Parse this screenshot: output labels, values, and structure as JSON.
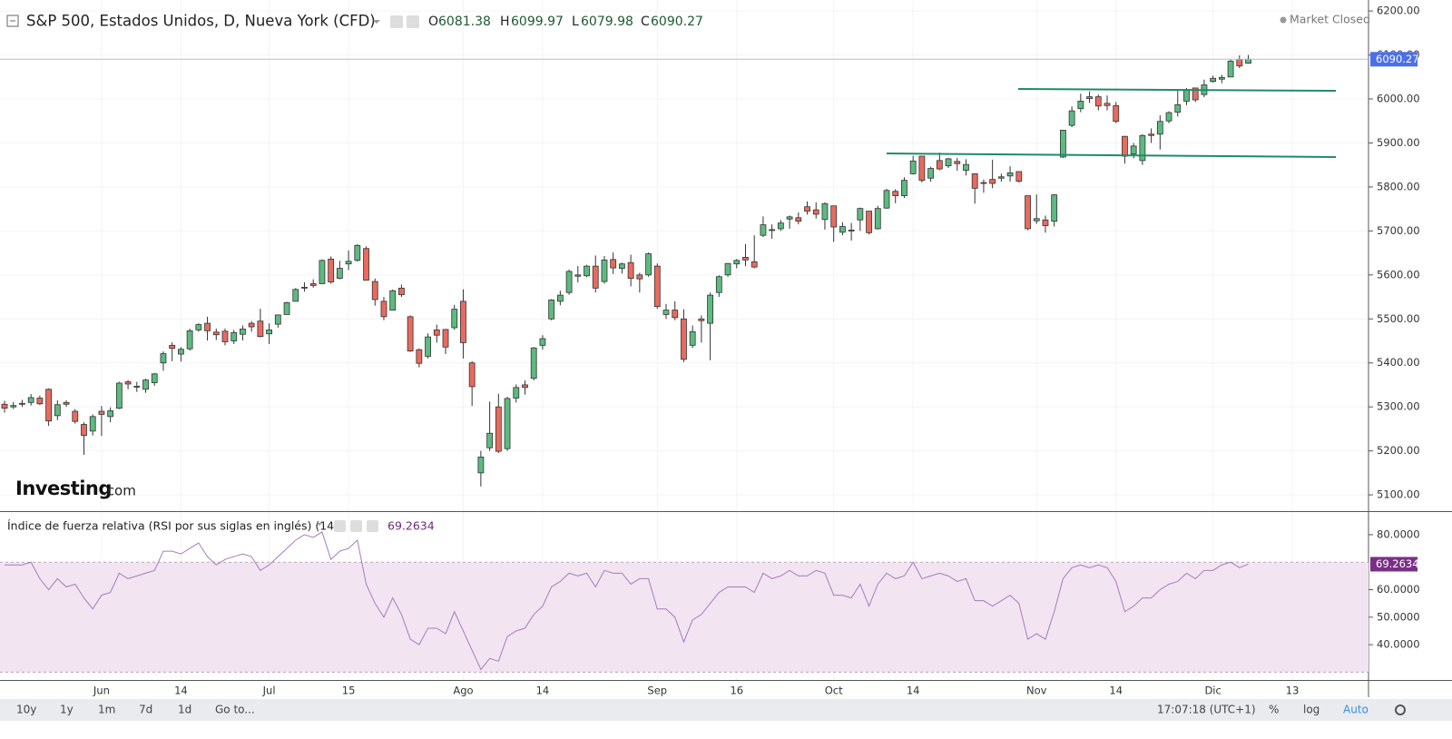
{
  "chart_data": [
    {
      "type": "candlestick",
      "title": "S&P 500, Estados Unidos, D, Nueva York (CFD)",
      "categories": [
        null,
        null,
        null,
        null,
        null,
        null,
        null,
        null,
        null,
        null,
        null,
        "Jun",
        null,
        null,
        null,
        null,
        null,
        null,
        null,
        null,
        "14",
        null,
        null,
        null,
        null,
        null,
        null,
        null,
        null,
        null,
        "Jul",
        null,
        null,
        null,
        null,
        null,
        null,
        null,
        null,
        "15",
        null,
        null,
        null,
        null,
        null,
        null,
        null,
        null,
        null,
        null,
        null,
        null,
        "Ago",
        null,
        null,
        null,
        null,
        null,
        null,
        null,
        null,
        "14",
        null,
        null,
        null,
        null,
        null,
        null,
        null,
        null,
        null,
        null,
        null,
        null,
        "Sep",
        null,
        null,
        null,
        null,
        null,
        null,
        null,
        null,
        "16",
        null,
        null,
        null,
        null,
        null,
        null,
        null,
        null,
        null,
        null,
        "Oct",
        null,
        null,
        null,
        null,
        null,
        null,
        null,
        null,
        "14",
        null,
        null,
        null,
        null,
        null,
        null,
        null,
        null,
        null,
        null,
        null,
        null,
        null,
        "Nov",
        null,
        null,
        null,
        null,
        null,
        null,
        null,
        null,
        "14",
        null,
        null,
        null,
        null,
        null,
        null,
        null,
        null,
        null,
        null,
        "Dic",
        null,
        null,
        null,
        null,
        null,
        null,
        null,
        null,
        "13"
      ],
      "open": [
        5306,
        5300,
        5306,
        5310,
        5320,
        5340,
        5280,
        5310,
        5290,
        5260,
        5245,
        5290,
        5278,
        5297,
        5357,
        5345,
        5340,
        5355,
        5400,
        5440,
        5420,
        5432,
        5475,
        5490,
        5470,
        5472,
        5450,
        5465,
        5490,
        5495,
        5466,
        5488,
        5510,
        5540,
        5570,
        5580,
        5580,
        5636,
        5592,
        5625,
        5633,
        5660,
        5585,
        5540,
        5520,
        5570,
        5505,
        5430,
        5415,
        5475,
        5476,
        5480,
        5540,
        5400,
        5150,
        5207,
        5300,
        5205,
        5320,
        5350,
        5365,
        5440,
        5500,
        5540,
        5560,
        5600,
        5598,
        5620,
        5585,
        5635,
        5615,
        5628,
        5600,
        5600,
        5620,
        5510,
        5520,
        5500,
        5440,
        5500,
        5490,
        5560,
        5600,
        5625,
        5640,
        5630,
        5690,
        5702,
        5705,
        5727,
        5730,
        5755,
        5748,
        5726,
        5757,
        5697,
        5702,
        5725,
        5745,
        5705,
        5752,
        5790,
        5780,
        5830,
        5870,
        5820,
        5860,
        5848,
        5858,
        5838,
        5830,
        5810,
        5817,
        5820,
        5825,
        5835,
        5780,
        5723,
        5725,
        5722,
        5868,
        5940,
        5978,
        6005,
        6005,
        5990,
        5985,
        5915,
        5875,
        5860,
        5920,
        5920,
        5950,
        5970,
        5995,
        6025,
        6010,
        6040,
        6045,
        6050,
        6090,
        6081.38,
        null,
        null,
        null,
        null,
        null
      ],
      "high": [
        5314,
        5311,
        5316,
        5329,
        5326,
        5342,
        5315,
        5315,
        5295,
        5265,
        5283,
        5302,
        5299,
        5357,
        5361,
        5357,
        5364,
        5377,
        5426,
        5447,
        5436,
        5478,
        5490,
        5505,
        5478,
        5478,
        5475,
        5485,
        5495,
        5523,
        5490,
        5510,
        5539,
        5570,
        5583,
        5590,
        5635,
        5642,
        5632,
        5656,
        5670,
        5665,
        5592,
        5550,
        5567,
        5578,
        5508,
        5433,
        5467,
        5487,
        5477,
        5532,
        5567,
        5404,
        5200,
        5312,
        5330,
        5323,
        5351,
        5360,
        5436,
        5463,
        5545,
        5564,
        5612,
        5620,
        5623,
        5644,
        5643,
        5651,
        5628,
        5646,
        5605,
        5651,
        5626,
        5534,
        5540,
        5522,
        5485,
        5508,
        5560,
        5599,
        5627,
        5636,
        5670,
        5690,
        5733,
        5715,
        5725,
        5735,
        5742,
        5767,
        5765,
        5765,
        5757,
        5720,
        5718,
        5753,
        5745,
        5757,
        5796,
        5795,
        5822,
        5871,
        5870,
        5846,
        5878,
        5866,
        5866,
        5863,
        5830,
        5817,
        5862,
        5830,
        5847,
        5835,
        5780,
        5783,
        5735,
        5784,
        5930,
        5983,
        6012,
        6017,
        6010,
        6008,
        5993,
        5916,
        5900,
        5920,
        5933,
        5963,
        5972,
        6020,
        6025,
        6025,
        6044,
        6053,
        6055,
        6090,
        6099,
        6099.97,
        null,
        null,
        null,
        null,
        null
      ],
      "low": [
        5287,
        5295,
        5300,
        5303,
        5304,
        5257,
        5270,
        5300,
        5262,
        5191,
        5235,
        5234,
        5265,
        5295,
        5340,
        5334,
        5332,
        5348,
        5382,
        5404,
        5403,
        5428,
        5471,
        5451,
        5452,
        5440,
        5443,
        5451,
        5471,
        5458,
        5443,
        5480,
        5510,
        5540,
        5562,
        5571,
        5580,
        5580,
        5590,
        5611,
        5630,
        5587,
        5530,
        5497,
        5520,
        5550,
        5425,
        5390,
        5410,
        5446,
        5420,
        5475,
        5410,
        5302,
        5119,
        5200,
        5195,
        5200,
        5310,
        5328,
        5360,
        5430,
        5497,
        5531,
        5555,
        5583,
        5595,
        5560,
        5580,
        5602,
        5603,
        5574,
        5560,
        5596,
        5523,
        5500,
        5497,
        5402,
        5434,
        5446,
        5406,
        5550,
        5596,
        5615,
        5620,
        5615,
        5686,
        5682,
        5700,
        5705,
        5715,
        5737,
        5728,
        5703,
        5675,
        5690,
        5678,
        5700,
        5692,
        5703,
        5750,
        5763,
        5775,
        5828,
        5810,
        5812,
        5838,
        5843,
        5837,
        5826,
        5762,
        5787,
        5797,
        5812,
        5812,
        5810,
        5702,
        5716,
        5696,
        5710,
        5866,
        5936,
        5970,
        5991,
        5974,
        5974,
        5945,
        5853,
        5865,
        5850,
        5900,
        5885,
        5945,
        5960,
        5986,
        5993,
        6004,
        6037,
        6036,
        6050,
        6070,
        6079.98,
        null,
        null,
        null,
        null,
        null
      ],
      "close": [
        5297,
        5303,
        5308,
        5321,
        5307,
        5268,
        5305,
        5306,
        5267,
        5235,
        5278,
        5283,
        5291,
        5354,
        5352,
        5347,
        5361,
        5375,
        5421,
        5433,
        5431,
        5473,
        5487,
        5473,
        5464,
        5448,
        5469,
        5477,
        5482,
        5460,
        5475,
        5509,
        5537,
        5567,
        5572,
        5576,
        5633,
        5584,
        5615,
        5631,
        5667,
        5588,
        5544,
        5505,
        5564,
        5555,
        5427,
        5399,
        5459,
        5463,
        5436,
        5522,
        5446,
        5346,
        5186,
        5240,
        5199,
        5319,
        5344,
        5344,
        5434,
        5455,
        5543,
        5554,
        5608,
        5597,
        5620,
        5570,
        5634,
        5616,
        5625,
        5592,
        5591,
        5648,
        5528,
        5520,
        5503,
        5408,
        5471,
        5496,
        5554,
        5596,
        5626,
        5633,
        5634,
        5618,
        5714,
        5703,
        5718,
        5732,
        5722,
        5745,
        5738,
        5762,
        5709,
        5710,
        5700,
        5751,
        5696,
        5751,
        5792,
        5780,
        5815,
        5859,
        5815,
        5842,
        5841,
        5864,
        5853,
        5851,
        5797,
        5809,
        5808,
        5823,
        5832,
        5813,
        5705,
        5728,
        5712,
        5782,
        5929,
        5973,
        5995,
        6001,
        5984,
        5985,
        5949,
        5870,
        5893,
        5917,
        5917,
        5949,
        5969,
        5987,
        6021,
        5998,
        6032,
        6047,
        6049,
        6086,
        6075,
        6090.27,
        null,
        null,
        null,
        null,
        null
      ],
      "up_color": "#5dba80",
      "down_color": "#e96a5e",
      "last_price_color": "#4c6ee8",
      "ylim": [
        5063,
        6225
      ],
      "yticks": [
        {
          "value": 5100,
          "label": "5100.00"
        },
        {
          "value": 5200,
          "label": "5200.00"
        },
        {
          "value": 5300,
          "label": "5300.00"
        },
        {
          "value": 5400,
          "label": "5400.00"
        },
        {
          "value": 5500,
          "label": "5500.00"
        },
        {
          "value": 5600,
          "label": "5600.00"
        },
        {
          "value": 5700,
          "label": "5700.00"
        },
        {
          "value": 5800,
          "label": "5800.00"
        },
        {
          "value": 5900,
          "label": "5900.00"
        },
        {
          "value": 6000,
          "label": "6000.00"
        },
        {
          "value": 6100,
          "label": "6100.00"
        },
        {
          "value": 6200,
          "label": "6200.00"
        }
      ],
      "grid": true,
      "ohlc_labels": [
        "O",
        "H",
        "L",
        "C"
      ]
    },
    {
      "type": "line",
      "title": "Índice de fuerza relativa (RSI por sus siglas en inglés) (14)",
      "values": [
        69,
        69,
        69,
        70,
        64,
        60,
        64,
        61,
        62,
        57,
        53,
        58,
        59,
        66,
        64,
        65,
        66,
        67,
        74,
        74,
        73,
        75,
        77,
        72,
        69,
        71,
        72,
        73,
        72,
        67,
        69,
        72,
        75,
        78,
        80,
        79,
        81,
        71,
        74,
        75,
        78,
        62,
        55,
        50,
        57,
        51,
        42,
        40,
        46,
        46,
        44,
        52,
        45,
        38,
        31,
        35,
        34,
        43,
        45,
        46,
        51,
        54,
        61,
        63,
        66,
        65,
        66,
        61,
        67,
        66,
        66,
        62,
        64,
        64,
        53,
        53,
        50,
        41,
        49,
        51,
        55,
        59,
        61,
        61,
        61,
        59,
        66,
        64,
        65,
        67,
        65,
        65,
        67,
        66,
        58,
        58,
        57,
        62,
        54,
        62,
        66,
        64,
        65,
        70,
        64,
        65,
        66,
        65,
        63,
        64,
        56,
        56,
        54,
        56,
        58,
        55,
        42,
        44,
        42,
        52,
        64,
        68,
        69,
        68,
        69,
        68,
        63,
        52,
        54,
        57,
        57,
        60,
        62,
        63,
        66,
        64,
        67,
        67,
        69,
        70,
        68,
        69.2634,
        null,
        null,
        null,
        null,
        null
      ],
      "color": "#a77bbd",
      "ylim": [
        27.5,
        87.9
      ],
      "yticks": [
        {
          "value": 40,
          "label": "40.0000"
        },
        {
          "value": 50,
          "label": "50.0000"
        },
        {
          "value": 60,
          "label": "60.0000"
        },
        {
          "value": 80,
          "label": "80.0000"
        }
      ],
      "band": [
        30,
        70
      ],
      "band_color": "#f2e4f1"
    }
  ],
  "ui": {
    "market_status": "Market Closed",
    "logo": "Investing",
    "logo_suffix": ".com",
    "ranges": [
      "10y",
      "1y",
      "1m",
      "7d",
      "1d"
    ],
    "goto": "Go to...",
    "time": "17:07:18 (UTC+1)",
    "percent": "%",
    "log": "log",
    "auto": "Auto"
  }
}
